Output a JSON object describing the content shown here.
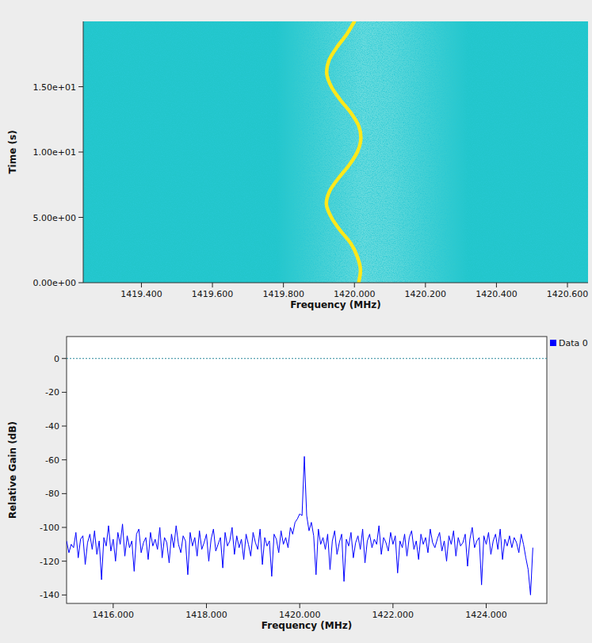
{
  "chart_data": [
    {
      "type": "spectrogram",
      "xlabel": "Frequency (MHz)",
      "ylabel": "Time (s)",
      "xlim": [
        1419.236,
        1420.658
      ],
      "ylim": [
        0,
        20
      ],
      "xticks": [
        {
          "value": 1419.4,
          "label": "1419.400"
        },
        {
          "value": 1419.6,
          "label": "1419.600"
        },
        {
          "value": 1419.8,
          "label": "1419.800"
        },
        {
          "value": 1420.0,
          "label": "1420.000"
        },
        {
          "value": 1420.2,
          "label": "1420.200"
        },
        {
          "value": 1420.4,
          "label": "1420.400"
        },
        {
          "value": 1420.6,
          "label": "1420.600"
        }
      ],
      "yticks": [
        {
          "value": 0,
          "label": "0.00e+00"
        },
        {
          "value": 5,
          "label": "5.00e+00"
        },
        {
          "value": 10,
          "label": "1.00e+01"
        },
        {
          "value": 15,
          "label": "1.50e+01"
        }
      ],
      "band": [
        1419.78,
        1420.32
      ],
      "series": [
        {
          "color": "#ffe81a",
          "x": [
            1420.012,
            1420.017,
            1420.008,
            1419.99,
            1419.96,
            1419.935,
            1419.921,
            1419.93,
            1419.955,
            1419.985,
            1420.008,
            1420.018,
            1420.012,
            1419.99,
            1419.96,
            1419.935,
            1419.922,
            1419.928,
            1419.95,
            1419.978,
            1420.0
          ],
          "values": [
            0,
            1,
            2,
            3,
            4,
            5,
            6,
            7,
            8,
            9,
            10,
            11,
            12,
            13,
            14,
            15,
            16,
            17,
            18,
            19,
            20
          ]
        }
      ]
    },
    {
      "type": "line",
      "xlabel": "Frequency (MHz)",
      "ylabel": "Relative Gain (dB)",
      "xlim": [
        1415,
        1425.3
      ],
      "ylim": [
        -145,
        13
      ],
      "xticks": [
        {
          "value": 1416,
          "label": "1416.000"
        },
        {
          "value": 1418,
          "label": "1418.000"
        },
        {
          "value": 1420,
          "label": "1420.000"
        },
        {
          "value": 1422,
          "label": "1422.000"
        },
        {
          "value": 1424,
          "label": "1424.000"
        }
      ],
      "yticks": [
        0,
        -20,
        -40,
        -60,
        -80,
        -100,
        -120,
        -140
      ],
      "reference_line": 0,
      "legend": "right",
      "x": [
        1415.0,
        1415.05,
        1415.1,
        1415.15,
        1415.2,
        1415.25,
        1415.3,
        1415.35,
        1415.4,
        1415.45,
        1415.5,
        1415.55,
        1415.6,
        1415.65,
        1415.7,
        1415.75,
        1415.8,
        1415.85,
        1415.9,
        1415.95,
        1416.0,
        1416.05,
        1416.1,
        1416.15,
        1416.2,
        1416.25,
        1416.3,
        1416.35,
        1416.4,
        1416.45,
        1416.5,
        1416.55,
        1416.6,
        1416.65,
        1416.7,
        1416.75,
        1416.8,
        1416.85,
        1416.9,
        1416.95,
        1417.0,
        1417.05,
        1417.1,
        1417.15,
        1417.2,
        1417.25,
        1417.3,
        1417.35,
        1417.4,
        1417.45,
        1417.5,
        1417.55,
        1417.6,
        1417.65,
        1417.7,
        1417.75,
        1417.8,
        1417.85,
        1417.9,
        1417.95,
        1418.0,
        1418.05,
        1418.1,
        1418.15,
        1418.2,
        1418.25,
        1418.3,
        1418.35,
        1418.4,
        1418.45,
        1418.5,
        1418.55,
        1418.6,
        1418.65,
        1418.7,
        1418.75,
        1418.8,
        1418.85,
        1418.9,
        1418.95,
        1419.0,
        1419.05,
        1419.1,
        1419.15,
        1419.2,
        1419.25,
        1419.3,
        1419.35,
        1419.4,
        1419.45,
        1419.5,
        1419.55,
        1419.6,
        1419.65,
        1419.7,
        1419.75,
        1419.8,
        1419.85,
        1419.9,
        1419.95,
        1420.0,
        1420.05,
        1420.1,
        1420.15,
        1420.2,
        1420.25,
        1420.3,
        1420.35,
        1420.4,
        1420.45,
        1420.5,
        1420.55,
        1420.6,
        1420.65,
        1420.7,
        1420.75,
        1420.8,
        1420.85,
        1420.9,
        1420.95,
        1421.0,
        1421.05,
        1421.1,
        1421.15,
        1421.2,
        1421.25,
        1421.3,
        1421.35,
        1421.4,
        1421.45,
        1421.5,
        1421.55,
        1421.6,
        1421.65,
        1421.7,
        1421.75,
        1421.8,
        1421.85,
        1421.9,
        1421.95,
        1422.0,
        1422.05,
        1422.1,
        1422.15,
        1422.2,
        1422.25,
        1422.3,
        1422.35,
        1422.4,
        1422.45,
        1422.5,
        1422.55,
        1422.6,
        1422.65,
        1422.7,
        1422.75,
        1422.8,
        1422.85,
        1422.9,
        1422.95,
        1423.0,
        1423.05,
        1423.1,
        1423.15,
        1423.2,
        1423.25,
        1423.3,
        1423.35,
        1423.4,
        1423.45,
        1423.5,
        1423.55,
        1423.6,
        1423.65,
        1423.7,
        1423.75,
        1423.8,
        1423.85,
        1423.9,
        1423.95,
        1424.0,
        1424.05,
        1424.1,
        1424.15,
        1424.2,
        1424.25,
        1424.3,
        1424.35,
        1424.4,
        1424.45,
        1424.5,
        1424.55,
        1424.6,
        1424.65,
        1424.7,
        1424.75,
        1424.8,
        1424.85,
        1424.9,
        1424.95,
        1425.0
      ],
      "series": [
        {
          "name": "Data 0",
          "color": "#0000ff",
          "values": [
            -108,
            -115,
            -110,
            -112,
            -103,
            -118,
            -107,
            -105,
            -122,
            -109,
            -104,
            -113,
            -102,
            -116,
            -108,
            -131,
            -106,
            -111,
            -99,
            -114,
            -107,
            -120,
            -103,
            -110,
            -98,
            -117,
            -105,
            -112,
            -108,
            -126,
            -104,
            -101,
            -115,
            -109,
            -106,
            -119,
            -103,
            -111,
            -107,
            -113,
            -100,
            -118,
            -106,
            -109,
            -121,
            -104,
            -112,
            -99,
            -110,
            -115,
            -105,
            -108,
            -128,
            -103,
            -111,
            -106,
            -117,
            -102,
            -113,
            -109,
            -104,
            -120,
            -107,
            -101,
            -114,
            -110,
            -106,
            -124,
            -103,
            -111,
            -108,
            -100,
            -116,
            -105,
            -112,
            -107,
            -119,
            -104,
            -110,
            -117,
            -103,
            -109,
            -113,
            -101,
            -122,
            -106,
            -111,
            -108,
            -129,
            -104,
            -107,
            -115,
            -102,
            -110,
            -106,
            -112,
            -100,
            -104,
            -97,
            -95,
            -92,
            -93,
            -58,
            -93,
            -102,
            -97,
            -105,
            -128,
            -101,
            -110,
            -106,
            -113,
            -104,
            -125,
            -108,
            -102,
            -116,
            -109,
            -104,
            -132,
            -107,
            -111,
            -103,
            -118,
            -109,
            -105,
            -113,
            -101,
            -121,
            -108,
            -104,
            -112,
            -107,
            -110,
            -99,
            -116,
            -106,
            -109,
            -114,
            -103,
            -110,
            -105,
            -127,
            -108,
            -112,
            -104,
            -117,
            -106,
            -102,
            -113,
            -108,
            -119,
            -104,
            -110,
            -106,
            -115,
            -101,
            -109,
            -112,
            -107,
            -103,
            -114,
            -108,
            -120,
            -105,
            -110,
            -102,
            -117,
            -106,
            -111,
            -109,
            -104,
            -123,
            -107,
            -100,
            -112,
            -108,
            -106,
            -134,
            -105,
            -110,
            -103,
            -116,
            -108,
            -104,
            -113,
            -101,
            -119,
            -107,
            -111,
            -105,
            -112,
            -106,
            -109,
            -115,
            -104,
            -110,
            -118,
            -125,
            -140,
            -112
          ]
        }
      ]
    }
  ]
}
